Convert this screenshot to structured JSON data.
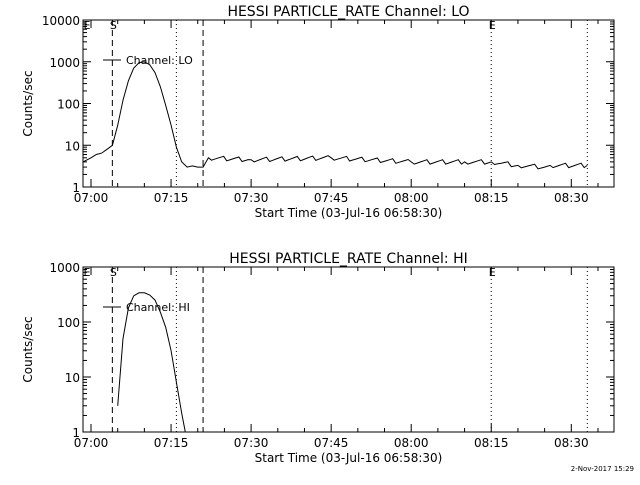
{
  "footer": {
    "date_stamp": "2-Nov-2017 15:29"
  },
  "chart_data": [
    {
      "type": "line",
      "title": "HESSI PARTICLE_RATE Channel: LO",
      "xlabel": "Start Time (03-Jul-16 06:58:30)",
      "ylabel": "Counts/sec",
      "y_scale": "log",
      "ylim": [
        1,
        10000
      ],
      "xlim": [
        "06:58:30",
        "08:38:00"
      ],
      "x_ticks": [
        "07:00",
        "07:15",
        "07:30",
        "07:45",
        "08:00",
        "08:15",
        "08:30"
      ],
      "y_ticks": [
        "1",
        "10",
        "100",
        "1000",
        "10000"
      ],
      "legend": {
        "label": "Channel: LO",
        "position": "top-left"
      },
      "markers": [
        {
          "time": "07:04:00",
          "style": "dashed",
          "label": "S"
        },
        {
          "time": "07:16:00",
          "style": "dotted",
          "label": ""
        },
        {
          "time": "07:21:00",
          "style": "dashed",
          "label": ""
        },
        {
          "time": "08:15:00",
          "style": "dotted",
          "label": "E"
        },
        {
          "time": "08:33:00",
          "style": "dotted",
          "label": ""
        }
      ],
      "edge_letter": "E",
      "series": [
        {
          "x": [
            "06:58:30",
            "07:00:00",
            "07:01:00",
            "07:02:00",
            "07:03:00",
            "07:04:00",
            "07:05:00",
            "07:06:00",
            "07:07:00",
            "07:08:00",
            "07:09:00",
            "07:10:00",
            "07:11:00",
            "07:12:00",
            "07:13:00",
            "07:14:00",
            "07:15:00",
            "07:16:00",
            "07:17:00",
            "07:18:00",
            "07:19:00",
            "07:20:00",
            "07:21:00",
            "07:22:00",
            "07:30:00",
            "07:45:00",
            "08:00:00",
            "08:10:00",
            "08:15:00",
            "08:20:00",
            "08:25:00",
            "08:26:00",
            "08:33:00"
          ],
          "values": [
            4,
            5,
            6,
            6.5,
            8,
            10,
            30,
            120,
            350,
            700,
            950,
            1000,
            850,
            550,
            250,
            90,
            30,
            9,
            4,
            3,
            3.2,
            3,
            3,
            5,
            4.5,
            5,
            4,
            4,
            4,
            3.3,
            3,
            3.3,
            3.3
          ]
        }
      ]
    },
    {
      "type": "line",
      "title": "HESSI PARTICLE_RATE Channel: HI",
      "xlabel": "Start Time (03-Jul-16 06:58:30)",
      "ylabel": "Counts/sec",
      "y_scale": "log",
      "ylim": [
        1,
        1000
      ],
      "xlim": [
        "06:58:30",
        "08:38:00"
      ],
      "x_ticks": [
        "07:00",
        "07:15",
        "07:30",
        "07:45",
        "08:00",
        "08:15",
        "08:30"
      ],
      "y_ticks": [
        "1",
        "10",
        "100",
        "1000"
      ],
      "legend": {
        "label": "Channel: HI",
        "position": "top-left"
      },
      "markers": [
        {
          "time": "07:04:00",
          "style": "dashed",
          "label": "S"
        },
        {
          "time": "07:16:00",
          "style": "dotted",
          "label": ""
        },
        {
          "time": "07:21:00",
          "style": "dashed",
          "label": ""
        },
        {
          "time": "08:15:00",
          "style": "dotted",
          "label": "E"
        },
        {
          "time": "08:33:00",
          "style": "dotted",
          "label": ""
        }
      ],
      "edge_letter": "E",
      "series": [
        {
          "x": [
            "07:05:00",
            "07:06:00",
            "07:07:00",
            "07:08:00",
            "07:09:00",
            "07:10:00",
            "07:11:00",
            "07:12:00",
            "07:13:00",
            "07:14:00",
            "07:15:00",
            "07:16:00",
            "07:17:00",
            "07:17:40"
          ],
          "values": [
            3,
            50,
            180,
            300,
            340,
            340,
            310,
            250,
            150,
            80,
            30,
            8,
            2.2,
            1
          ]
        }
      ]
    }
  ]
}
